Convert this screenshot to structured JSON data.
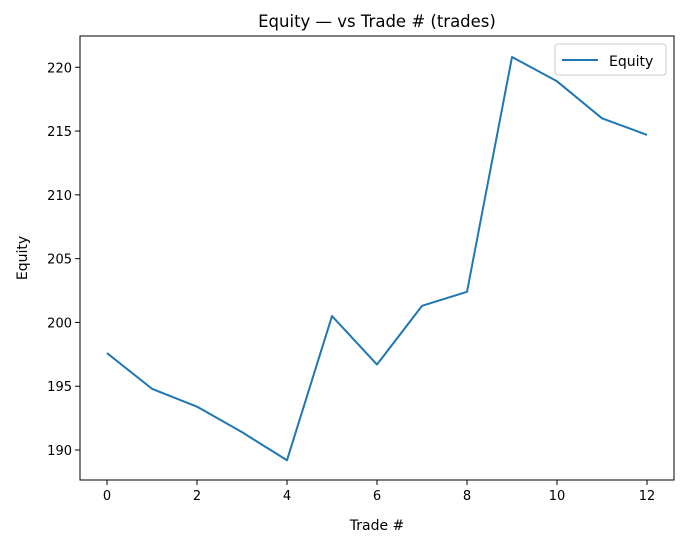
{
  "chart_data": {
    "type": "line",
    "title": "Equity — vs Trade # (trades)",
    "xlabel": "Trade #",
    "ylabel": "Equity",
    "x": [
      0,
      1,
      2,
      3,
      4,
      5,
      6,
      7,
      8,
      9,
      10,
      11,
      12
    ],
    "series": [
      {
        "name": "Equity",
        "color": "#1f77b4",
        "values": [
          197.6,
          194.8,
          193.4,
          191.4,
          189.2,
          200.5,
          196.7,
          201.3,
          202.4,
          220.8,
          218.9,
          216.0,
          214.7
        ]
      }
    ],
    "xticks": [
      "0",
      "2",
      "4",
      "6",
      "8",
      "10",
      "12"
    ],
    "yticks": [
      "190",
      "195",
      "200",
      "205",
      "210",
      "215",
      "220"
    ],
    "xlim": [
      -0.6,
      12.6
    ],
    "ylim": [
      187.65,
      222.45
    ],
    "grid": false,
    "legend": "top-right"
  }
}
